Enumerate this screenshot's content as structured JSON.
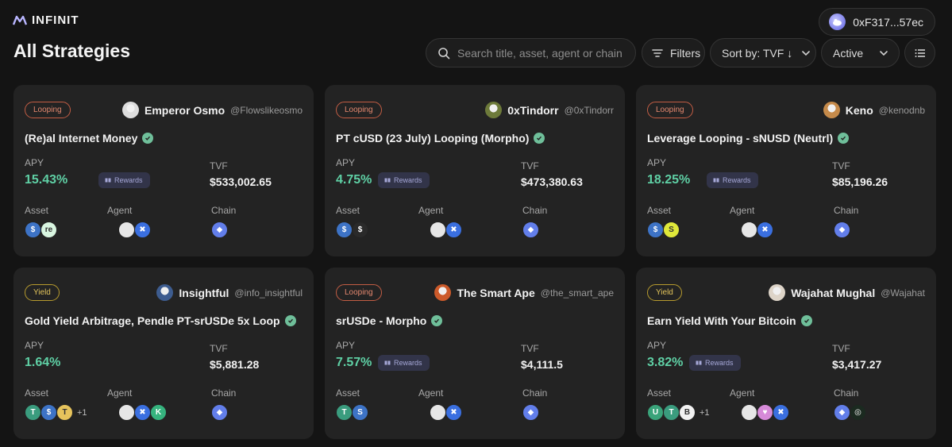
{
  "brand": {
    "name": "INFINIT"
  },
  "wallet": {
    "address": "0xF317...57ec"
  },
  "page": {
    "title": "All Strategies"
  },
  "controls": {
    "search_placeholder": "Search title, asset, agent or chain",
    "filters_label": "Filters",
    "sort_label": "Sort by: TVF ↓",
    "status_label": "Active"
  },
  "labels": {
    "apy": "APY",
    "tvf": "TVF",
    "asset": "Asset",
    "agent": "Agent",
    "chain": "Chain",
    "rewards": "Rewards"
  },
  "colors": {
    "background": "#141414",
    "card": "#232323",
    "apy_green": "#5fd0a5",
    "looping_tag": "#e4886f",
    "yield_tag": "#e0c25a",
    "rewards_badge": "#323449"
  },
  "cards": [
    {
      "tag": "Looping",
      "author": "Emperor Osmo",
      "handle": "@Flowslikeosmo",
      "title": "(Re)al Internet Money",
      "apy": "15.43%",
      "rewards": true,
      "tvf": "$533,002.65",
      "assets": [
        "usdc-icon",
        "re-icon"
      ],
      "agents": [
        "agent-ghost-icon",
        "agent-butterfly-icon"
      ],
      "chains": [
        "ethereum-icon"
      ],
      "asset_more": ""
    },
    {
      "tag": "Looping",
      "author": "0xTindorr",
      "handle": "@0xTindorr",
      "title": "PT cUSD (23 July) Looping (Morpho)",
      "apy": "4.75%",
      "rewards": true,
      "tvf": "$473,380.63",
      "assets": [
        "usdc-icon",
        "cusd-icon"
      ],
      "agents": [
        "agent-ghost-icon",
        "agent-butterfly-icon"
      ],
      "chains": [
        "ethereum-icon"
      ],
      "asset_more": ""
    },
    {
      "tag": "Looping",
      "author": "Keno",
      "handle": "@kenodnb",
      "title": "Leverage Looping - sNUSD (Neutrl)",
      "apy": "18.25%",
      "rewards": true,
      "tvf": "$85,196.26",
      "assets": [
        "usdc-icon",
        "snusd-icon"
      ],
      "agents": [
        "agent-ghost-icon",
        "agent-butterfly-icon"
      ],
      "chains": [
        "ethereum-icon"
      ],
      "asset_more": ""
    },
    {
      "tag": "Yield",
      "author": "Insightful",
      "handle": "@info_insightful",
      "title": "Gold Yield Arbitrage, Pendle PT-srUSDe 5x Loop",
      "apy": "1.64%",
      "rewards": false,
      "tvf": "$5,881.28",
      "assets": [
        "tether-icon",
        "usdc-icon",
        "xaut-icon"
      ],
      "agents": [
        "agent-ghost-icon",
        "agent-butterfly-icon",
        "agent-k-icon"
      ],
      "chains": [
        "ethereum-icon"
      ],
      "asset_more": "+1"
    },
    {
      "tag": "Looping",
      "author": "The Smart Ape",
      "handle": "@the_smart_ape",
      "title": "srUSDe - Morpho",
      "apy": "7.57%",
      "rewards": true,
      "tvf": "$4,111.5",
      "assets": [
        "tether-icon",
        "usde-icon"
      ],
      "agents": [
        "agent-ghost-icon",
        "agent-butterfly-icon"
      ],
      "chains": [
        "ethereum-icon"
      ],
      "asset_more": ""
    },
    {
      "tag": "Yield",
      "author": "Wajahat Mughal",
      "handle": "@Wajahat",
      "title": "Earn Yield With Your Bitcoin",
      "apy": "3.82%",
      "rewards": true,
      "tvf": "$3,417.27",
      "assets": [
        "ust-icon",
        "tether-icon",
        "bitcoin-icon"
      ],
      "agents": [
        "agent-ghost-icon",
        "agent-heart-icon",
        "agent-butterfly-icon"
      ],
      "chains": [
        "ethereum-icon",
        "lido-icon"
      ],
      "asset_more": "+1"
    }
  ]
}
